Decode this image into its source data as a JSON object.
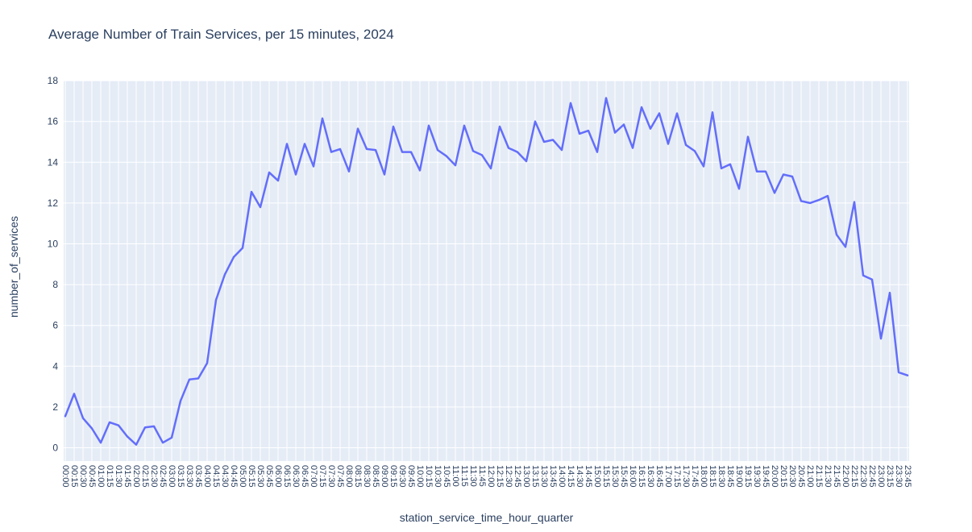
{
  "chart_data": {
    "type": "line",
    "title": "Average Number of Train Services, per 15 minutes, 2024",
    "xlabel": "station_service_time_hour_quarter",
    "ylabel": "number_of_services",
    "legend": "none",
    "grid": "on",
    "ylim": [
      0,
      18
    ],
    "y_ticks": [
      0,
      2,
      4,
      6,
      8,
      10,
      12,
      14,
      16,
      18
    ],
    "x": [
      "00:00",
      "00:15",
      "00:30",
      "00:45",
      "01:00",
      "01:15",
      "01:30",
      "01:45",
      "02:00",
      "02:15",
      "02:30",
      "02:45",
      "03:00",
      "03:15",
      "03:30",
      "03:45",
      "04:00",
      "04:15",
      "04:30",
      "04:45",
      "05:00",
      "05:15",
      "05:30",
      "05:45",
      "06:00",
      "06:15",
      "06:30",
      "06:45",
      "07:00",
      "07:15",
      "07:30",
      "07:45",
      "08:00",
      "08:15",
      "08:30",
      "08:45",
      "09:00",
      "09:15",
      "09:30",
      "09:45",
      "10:00",
      "10:15",
      "10:30",
      "10:45",
      "11:00",
      "11:15",
      "11:30",
      "11:45",
      "12:00",
      "12:15",
      "12:30",
      "12:45",
      "13:00",
      "13:15",
      "13:30",
      "13:45",
      "14:00",
      "14:15",
      "14:30",
      "14:45",
      "15:00",
      "15:15",
      "15:30",
      "15:45",
      "16:00",
      "16:15",
      "16:30",
      "16:45",
      "17:00",
      "17:15",
      "17:30",
      "17:45",
      "18:00",
      "18:15",
      "18:30",
      "18:45",
      "19:00",
      "19:15",
      "19:30",
      "19:45",
      "20:00",
      "20:15",
      "20:30",
      "20:45",
      "21:00",
      "21:15",
      "21:30",
      "21:45",
      "22:00",
      "22:15",
      "22:30",
      "22:45",
      "23:00",
      "23:15",
      "23:30",
      "23:45"
    ],
    "values": [
      1.55,
      2.65,
      1.45,
      0.95,
      0.25,
      1.25,
      1.1,
      0.55,
      0.15,
      1.0,
      1.05,
      0.25,
      0.5,
      2.3,
      3.35,
      3.4,
      4.15,
      7.25,
      8.5,
      9.35,
      9.8,
      12.55,
      11.8,
      13.5,
      13.1,
      14.9,
      13.4,
      14.9,
      13.8,
      16.15,
      14.5,
      14.65,
      13.55,
      15.65,
      14.65,
      14.6,
      13.4,
      15.75,
      14.5,
      14.5,
      13.6,
      15.8,
      14.6,
      14.3,
      13.85,
      15.8,
      14.55,
      14.35,
      13.7,
      15.75,
      14.7,
      14.5,
      14.05,
      16.0,
      15.0,
      15.1,
      14.6,
      16.9,
      15.4,
      15.55,
      14.5,
      17.15,
      15.45,
      15.85,
      14.7,
      16.7,
      15.65,
      16.4,
      14.9,
      16.4,
      14.85,
      14.55,
      13.8,
      16.45,
      13.7,
      13.9,
      12.7,
      15.25,
      13.55,
      13.55,
      12.5,
      13.4,
      13.3,
      12.1,
      12.0,
      12.15,
      12.35,
      10.45,
      9.85,
      12.05,
      8.45,
      8.25,
      5.35,
      7.6,
      3.7,
      3.55
    ],
    "colors": {
      "line": "#636EFA",
      "plot_background": "#E5ECF6",
      "gridline": "#FFFFFF",
      "text": "#2A3F5F"
    }
  }
}
